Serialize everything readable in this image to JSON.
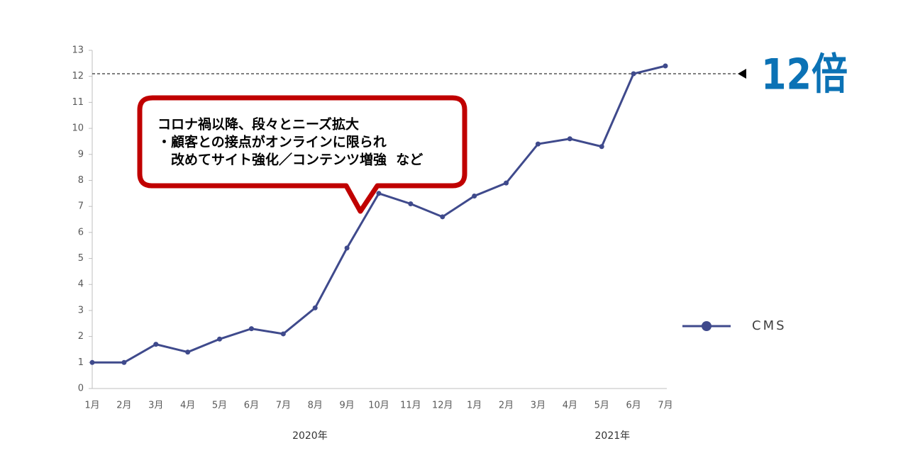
{
  "chart_data": {
    "type": "line",
    "categories": [
      "1月",
      "2月",
      "3月",
      "4月",
      "5月",
      "6月",
      "7月",
      "8月",
      "9月",
      "10月",
      "11月",
      "12月",
      "1月",
      "2月",
      "3月",
      "4月",
      "5月",
      "6月",
      "7月"
    ],
    "x_groups": [
      "2020年",
      "2021年"
    ],
    "series": [
      {
        "name": "CMS",
        "color": "#3f4a8c",
        "values": [
          1,
          1,
          1.7,
          1.4,
          1.9,
          2.3,
          2.1,
          3.1,
          5.4,
          7.5,
          7.1,
          6.6,
          7.4,
          7.9,
          9.4,
          9.6,
          9.3,
          12.1,
          12.4
        ]
      }
    ],
    "ylim": [
      0,
      13
    ],
    "yticks": [
      0,
      1,
      2,
      3,
      4,
      5,
      6,
      7,
      8,
      9,
      10,
      11,
      12,
      13
    ],
    "reference_line": {
      "value": 12.1,
      "label": "12倍",
      "color": "#0b72b5"
    },
    "callout": {
      "lines": [
        "コロナ禍以降、段々とニーズ拡大",
        "・顧客との接点がオンラインに限られ",
        "　改めてサイト強化／コンテンツ増強  など"
      ],
      "color": "#c00000"
    },
    "legend": "right"
  }
}
